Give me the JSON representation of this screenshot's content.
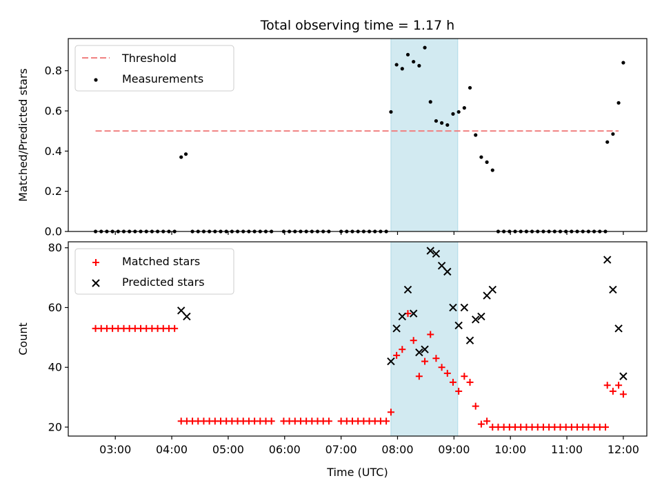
{
  "chart_data": [
    {
      "type": "scatter",
      "title": "Total observing time = 1.17 h",
      "xlabel": "",
      "ylabel": "Matched/Predicted stars",
      "xlim": [
        "02:10",
        "12:25"
      ],
      "ylim": [
        0,
        0.96
      ],
      "y_ticks": [
        "0.0",
        "0.2",
        "0.4",
        "0.6",
        "0.8"
      ],
      "x_ticks": [
        "03:00",
        "04:00",
        "05:00",
        "06:00",
        "07:00",
        "08:00",
        "09:00",
        "10:00",
        "11:00",
        "12:00"
      ],
      "highlight_span": [
        "07:53",
        "09:04"
      ],
      "highlight_color": "#add8e6",
      "legend": {
        "loc": "upper left"
      },
      "threshold": {
        "name": "Threshold",
        "y": 0.5,
        "x_range": [
          "02:39",
          "11:55"
        ],
        "color": "#f08080"
      },
      "series": [
        {
          "name": "Measurements",
          "color": "#000000",
          "marker": "dot",
          "points": [
            [
              "02:39",
              0
            ],
            [
              "02:45",
              0
            ],
            [
              "02:51",
              0
            ],
            [
              "02:57",
              0
            ],
            [
              "03:03",
              0
            ],
            [
              "03:09",
              0
            ],
            [
              "03:15",
              0
            ],
            [
              "03:21",
              0
            ],
            [
              "03:27",
              0
            ],
            [
              "03:33",
              0
            ],
            [
              "03:39",
              0
            ],
            [
              "03:45",
              0
            ],
            [
              "03:51",
              0
            ],
            [
              "03:57",
              0
            ],
            [
              "04:03",
              0
            ],
            [
              "04:10",
              0.37
            ],
            [
              "04:15",
              0.385
            ],
            [
              "04:22",
              0
            ],
            [
              "04:28",
              0
            ],
            [
              "04:34",
              0
            ],
            [
              "04:40",
              0
            ],
            [
              "04:46",
              0
            ],
            [
              "04:52",
              0
            ],
            [
              "04:58",
              0
            ],
            [
              "05:04",
              0
            ],
            [
              "05:10",
              0
            ],
            [
              "05:16",
              0
            ],
            [
              "05:22",
              0
            ],
            [
              "05:28",
              0
            ],
            [
              "05:34",
              0
            ],
            [
              "05:40",
              0
            ],
            [
              "05:46",
              0
            ],
            [
              "05:59",
              0
            ],
            [
              "06:05",
              0
            ],
            [
              "06:11",
              0
            ],
            [
              "06:17",
              0
            ],
            [
              "06:23",
              0
            ],
            [
              "06:29",
              0
            ],
            [
              "06:35",
              0
            ],
            [
              "06:41",
              0
            ],
            [
              "06:47",
              0
            ],
            [
              "07:00",
              0
            ],
            [
              "07:06",
              0
            ],
            [
              "07:12",
              0
            ],
            [
              "07:18",
              0
            ],
            [
              "07:24",
              0
            ],
            [
              "07:30",
              0
            ],
            [
              "07:36",
              0
            ],
            [
              "07:42",
              0
            ],
            [
              "07:48",
              0
            ],
            [
              "07:53",
              0.595
            ],
            [
              "07:59",
              0.83
            ],
            [
              "08:05",
              0.81
            ],
            [
              "08:11",
              0.88
            ],
            [
              "08:17",
              0.845
            ],
            [
              "08:23",
              0.825
            ],
            [
              "08:29",
              0.915
            ],
            [
              "08:35",
              0.645
            ],
            [
              "08:41",
              0.55
            ],
            [
              "08:47",
              0.54
            ],
            [
              "08:53",
              0.53
            ],
            [
              "08:59",
              0.585
            ],
            [
              "09:05",
              0.595
            ],
            [
              "09:11",
              0.615
            ],
            [
              "09:17",
              0.715
            ],
            [
              "09:23",
              0.48
            ],
            [
              "09:29",
              0.37
            ],
            [
              "09:35",
              0.345
            ],
            [
              "09:41",
              0.305
            ],
            [
              "09:47",
              0
            ],
            [
              "09:53",
              0
            ],
            [
              "09:59",
              0
            ],
            [
              "10:05",
              0
            ],
            [
              "10:11",
              0
            ],
            [
              "10:17",
              0
            ],
            [
              "10:23",
              0
            ],
            [
              "10:29",
              0
            ],
            [
              "10:35",
              0
            ],
            [
              "10:41",
              0
            ],
            [
              "10:47",
              0
            ],
            [
              "10:53",
              0
            ],
            [
              "10:59",
              0
            ],
            [
              "11:05",
              0
            ],
            [
              "11:11",
              0
            ],
            [
              "11:17",
              0
            ],
            [
              "11:23",
              0
            ],
            [
              "11:29",
              0
            ],
            [
              "11:35",
              0
            ],
            [
              "11:41",
              0
            ],
            [
              "11:43",
              0.445
            ],
            [
              "11:49",
              0.485
            ],
            [
              "11:55",
              0.64
            ],
            [
              "12:00",
              0.84
            ]
          ]
        }
      ]
    },
    {
      "type": "scatter",
      "title": "",
      "xlabel": "Time (UTC)",
      "ylabel": "Count",
      "xlim": [
        "02:10",
        "12:25"
      ],
      "ylim": [
        17,
        82
      ],
      "y_ticks": [
        "20",
        "40",
        "60",
        "80"
      ],
      "x_ticks": [
        "03:00",
        "04:00",
        "05:00",
        "06:00",
        "07:00",
        "08:00",
        "09:00",
        "10:00",
        "11:00",
        "12:00"
      ],
      "highlight_span": [
        "07:53",
        "09:04"
      ],
      "highlight_color": "#add8e6",
      "legend": {
        "loc": "upper left"
      },
      "series": [
        {
          "name": "Matched stars",
          "color": "#ff0000",
          "marker": "plus",
          "points": [
            [
              "02:39",
              53
            ],
            [
              "02:45",
              53
            ],
            [
              "02:51",
              53
            ],
            [
              "02:57",
              53
            ],
            [
              "03:03",
              53
            ],
            [
              "03:09",
              53
            ],
            [
              "03:15",
              53
            ],
            [
              "03:21",
              53
            ],
            [
              "03:27",
              53
            ],
            [
              "03:33",
              53
            ],
            [
              "03:39",
              53
            ],
            [
              "03:45",
              53
            ],
            [
              "03:51",
              53
            ],
            [
              "03:57",
              53
            ],
            [
              "04:03",
              53
            ],
            [
              "04:10",
              22
            ],
            [
              "04:16",
              22
            ],
            [
              "04:22",
              22
            ],
            [
              "04:28",
              22
            ],
            [
              "04:34",
              22
            ],
            [
              "04:40",
              22
            ],
            [
              "04:46",
              22
            ],
            [
              "04:52",
              22
            ],
            [
              "04:58",
              22
            ],
            [
              "05:04",
              22
            ],
            [
              "05:10",
              22
            ],
            [
              "05:16",
              22
            ],
            [
              "05:22",
              22
            ],
            [
              "05:28",
              22
            ],
            [
              "05:34",
              22
            ],
            [
              "05:40",
              22
            ],
            [
              "05:46",
              22
            ],
            [
              "05:59",
              22
            ],
            [
              "06:05",
              22
            ],
            [
              "06:11",
              22
            ],
            [
              "06:17",
              22
            ],
            [
              "06:23",
              22
            ],
            [
              "06:29",
              22
            ],
            [
              "06:35",
              22
            ],
            [
              "06:41",
              22
            ],
            [
              "06:47",
              22
            ],
            [
              "07:00",
              22
            ],
            [
              "07:06",
              22
            ],
            [
              "07:12",
              22
            ],
            [
              "07:18",
              22
            ],
            [
              "07:24",
              22
            ],
            [
              "07:30",
              22
            ],
            [
              "07:36",
              22
            ],
            [
              "07:42",
              22
            ],
            [
              "07:48",
              22
            ],
            [
              "07:53",
              25
            ],
            [
              "07:59",
              44
            ],
            [
              "08:05",
              46
            ],
            [
              "08:11",
              58
            ],
            [
              "08:17",
              49
            ],
            [
              "08:23",
              37
            ],
            [
              "08:29",
              42
            ],
            [
              "08:35",
              51
            ],
            [
              "08:41",
              43
            ],
            [
              "08:47",
              40
            ],
            [
              "08:53",
              38
            ],
            [
              "08:59",
              35
            ],
            [
              "09:05",
              32
            ],
            [
              "09:11",
              37
            ],
            [
              "09:17",
              35
            ],
            [
              "09:23",
              27
            ],
            [
              "09:29",
              21
            ],
            [
              "09:35",
              22
            ],
            [
              "09:41",
              20
            ],
            [
              "09:47",
              20
            ],
            [
              "09:53",
              20
            ],
            [
              "09:59",
              20
            ],
            [
              "10:05",
              20
            ],
            [
              "10:11",
              20
            ],
            [
              "10:17",
              20
            ],
            [
              "10:23",
              20
            ],
            [
              "10:29",
              20
            ],
            [
              "10:35",
              20
            ],
            [
              "10:41",
              20
            ],
            [
              "10:47",
              20
            ],
            [
              "10:53",
              20
            ],
            [
              "10:59",
              20
            ],
            [
              "11:05",
              20
            ],
            [
              "11:11",
              20
            ],
            [
              "11:17",
              20
            ],
            [
              "11:23",
              20
            ],
            [
              "11:29",
              20
            ],
            [
              "11:35",
              20
            ],
            [
              "11:41",
              20
            ],
            [
              "11:43",
              34
            ],
            [
              "11:49",
              32
            ],
            [
              "11:55",
              34
            ],
            [
              "12:00",
              31
            ]
          ]
        },
        {
          "name": "Predicted stars",
          "color": "#000000",
          "marker": "x",
          "points": [
            [
              "04:10",
              59
            ],
            [
              "04:16",
              57
            ],
            [
              "07:53",
              42
            ],
            [
              "07:59",
              53
            ],
            [
              "08:05",
              57
            ],
            [
              "08:11",
              66
            ],
            [
              "08:17",
              58
            ],
            [
              "08:23",
              45
            ],
            [
              "08:29",
              46
            ],
            [
              "08:35",
              79
            ],
            [
              "08:41",
              78
            ],
            [
              "08:47",
              74
            ],
            [
              "08:53",
              72
            ],
            [
              "08:59",
              60
            ],
            [
              "09:05",
              54
            ],
            [
              "09:11",
              60
            ],
            [
              "09:17",
              49
            ],
            [
              "09:23",
              56
            ],
            [
              "09:29",
              57
            ],
            [
              "09:35",
              64
            ],
            [
              "09:41",
              66
            ],
            [
              "11:43",
              76
            ],
            [
              "11:49",
              66
            ],
            [
              "11:55",
              53
            ],
            [
              "12:00",
              37
            ]
          ]
        }
      ]
    }
  ]
}
